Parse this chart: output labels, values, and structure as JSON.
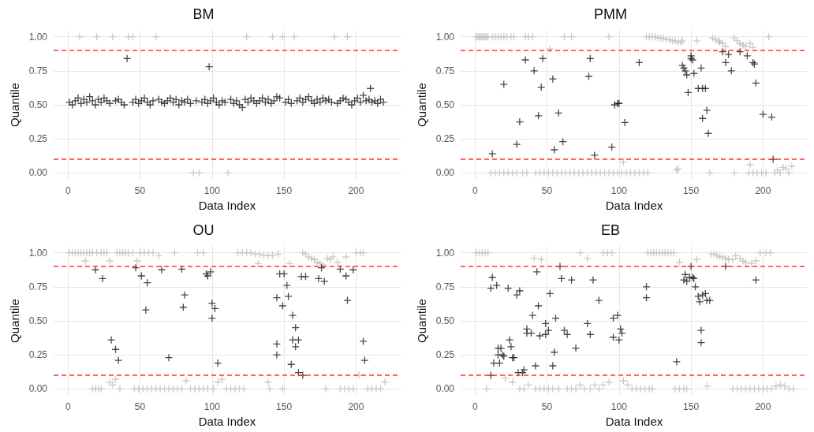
{
  "chart_data": [
    {
      "type": "scatter",
      "title": "BM",
      "xlabel": "Data Index",
      "ylabel": "Quantile",
      "xlim": [
        -10,
        231
      ],
      "ylim": [
        -0.05,
        1.05
      ],
      "xticks": [
        0,
        50,
        100,
        150,
        200
      ],
      "yticks": [
        {
          "value": 0,
          "label": "0.00"
        },
        {
          "value": 0.25,
          "label": "0.25"
        },
        {
          "value": 0.5,
          "label": "0.50"
        },
        {
          "value": 0.75,
          "label": "0.75"
        },
        {
          "value": 1,
          "label": "1.00"
        }
      ],
      "grid": true,
      "marker": "cross",
      "ref_lines": [
        {
          "axis": "y",
          "value": 0.1,
          "color": "#ff3333",
          "line_style": "dashed"
        },
        {
          "axis": "y",
          "value": 0.9,
          "color": "#ff3333",
          "line_style": "dashed"
        }
      ],
      "series": [
        {
          "color": "#bdbdbd",
          "x": [
            8,
            20,
            31,
            42,
            45,
            61,
            124,
            142,
            149,
            157,
            185,
            194,
            87,
            91,
            111
          ],
          "values": [
            1,
            1,
            1,
            1,
            1,
            1,
            1,
            1,
            1,
            1,
            1,
            1,
            0,
            0,
            0
          ]
        },
        {
          "color": "#1a1a1a",
          "x": [
            1,
            3,
            5,
            7,
            9,
            11,
            13,
            15,
            17,
            19,
            21,
            23,
            25,
            27,
            29,
            33,
            35,
            37,
            39,
            41,
            45,
            47,
            49,
            51,
            53,
            55,
            57,
            59,
            63,
            65,
            67,
            69,
            71,
            73,
            75,
            77,
            79,
            81,
            83,
            85,
            89,
            93,
            95,
            97,
            99,
            101,
            103,
            105,
            107,
            109,
            113,
            115,
            117,
            119,
            121,
            123,
            125,
            127,
            129,
            131,
            133,
            135,
            137,
            139,
            141,
            143,
            145,
            147,
            151,
            153,
            155,
            159,
            161,
            163,
            165,
            167,
            169,
            171,
            173,
            175,
            177,
            179,
            181,
            183,
            187,
            189,
            191,
            193,
            195,
            197,
            199,
            201,
            203,
            205,
            207,
            209,
            211,
            213,
            215,
            217,
            219,
            98,
            210
          ],
          "values": [
            0.52,
            0.5,
            0.53,
            0.55,
            0.51,
            0.54,
            0.52,
            0.56,
            0.53,
            0.5,
            0.54,
            0.52,
            0.55,
            0.53,
            0.51,
            0.53,
            0.54,
            0.52,
            0.5,
            0.84,
            0.52,
            0.54,
            0.51,
            0.53,
            0.55,
            0.52,
            0.5,
            0.53,
            0.54,
            0.52,
            0.51,
            0.53,
            0.55,
            0.52,
            0.54,
            0.5,
            0.53,
            0.52,
            0.54,
            0.51,
            0.53,
            0.52,
            0.54,
            0.51,
            0.53,
            0.55,
            0.52,
            0.5,
            0.53,
            0.52,
            0.54,
            0.51,
            0.53,
            0.5,
            0.48,
            0.54,
            0.52,
            0.55,
            0.53,
            0.51,
            0.53,
            0.55,
            0.52,
            0.54,
            0.51,
            0.53,
            0.56,
            0.55,
            0.52,
            0.54,
            0.51,
            0.53,
            0.55,
            0.52,
            0.54,
            0.56,
            0.53,
            0.51,
            0.54,
            0.52,
            0.55,
            0.53,
            0.54,
            0.52,
            0.51,
            0.53,
            0.55,
            0.54,
            0.52,
            0.5,
            0.53,
            0.55,
            0.52,
            0.57,
            0.53,
            0.54,
            0.52,
            0.53,
            0.51,
            0.54,
            0.52,
            0.78,
            0.62
          ]
        }
      ]
    },
    {
      "type": "scatter",
      "title": "PMM",
      "xlabel": "Data Index",
      "ylabel": "Quantile",
      "xlim": [
        -10,
        231
      ],
      "ylim": [
        -0.05,
        1.05
      ],
      "xticks": [
        0,
        50,
        100,
        150,
        200
      ],
      "yticks": [
        {
          "value": 0,
          "label": "0.00"
        },
        {
          "value": 0.25,
          "label": "0.25"
        },
        {
          "value": 0.5,
          "label": "0.50"
        },
        {
          "value": 0.75,
          "label": "0.75"
        },
        {
          "value": 1,
          "label": "1.00"
        }
      ],
      "grid": true,
      "marker": "cross",
      "ref_lines": [
        {
          "axis": "y",
          "value": 0.1,
          "color": "#ff3333",
          "line_style": "dashed"
        },
        {
          "axis": "y",
          "value": 0.9,
          "color": "#ff3333",
          "line_style": "dashed"
        }
      ],
      "series": [
        {
          "color": "#bdbdbd",
          "x": [
            1,
            2,
            3,
            4,
            5,
            6,
            7,
            8,
            9,
            12,
            14,
            16,
            18,
            20,
            22,
            25,
            27,
            35,
            37,
            40,
            62,
            67,
            93,
            119,
            121,
            123,
            125,
            127,
            129,
            131,
            133,
            135,
            137,
            139,
            141,
            143,
            144,
            154,
            165,
            167,
            169,
            170,
            172,
            174,
            180,
            182,
            184,
            186,
            188,
            191,
            193,
            204,
            52,
            11,
            14,
            17,
            20,
            23,
            26,
            29,
            33,
            36,
            42,
            45,
            48,
            51,
            54,
            57,
            60,
            63,
            66,
            69,
            72,
            75,
            78,
            81,
            84,
            87,
            90,
            93,
            96,
            99,
            102,
            105,
            108,
            111,
            114,
            117,
            120,
            140,
            141,
            163,
            180,
            190,
            193,
            196,
            199,
            202,
            208,
            210,
            212,
            214,
            216,
            218,
            220,
            103,
            191
          ],
          "values": [
            1,
            1,
            1,
            1,
            1,
            1,
            1,
            1,
            1,
            1,
            1,
            1,
            1,
            1,
            1,
            1,
            1,
            1,
            1,
            1,
            1,
            1,
            1,
            1,
            1,
            1,
            1,
            0.99,
            0.99,
            0.99,
            0.98,
            0.98,
            0.97,
            0.97,
            0.96,
            0.96,
            0.97,
            0.97,
            0.99,
            0.98,
            0.97,
            0.96,
            0.95,
            0.93,
            0.99,
            0.97,
            0.95,
            0.94,
            0.93,
            0.95,
            0.92,
            1,
            0.91,
            0,
            0,
            0,
            0,
            0,
            0,
            0,
            0,
            0,
            0,
            0,
            0,
            0,
            0,
            0,
            0,
            0,
            0,
            0,
            0,
            0,
            0,
            0,
            0,
            0,
            0,
            0,
            0,
            0,
            0,
            0,
            0,
            0,
            0,
            0,
            0,
            0.02,
            0.03,
            0,
            0,
            0,
            0,
            0,
            0,
            0,
            0,
            0.02,
            0,
            0.04,
            0.03,
            0,
            0.05,
            0.08,
            0.06
          ]
        },
        {
          "color": "#1a1a1a",
          "x": [
            12,
            20,
            31,
            29,
            35,
            41,
            44,
            46,
            47,
            54,
            55,
            58,
            61,
            79,
            80,
            83,
            95,
            97,
            99,
            100,
            104,
            114,
            144,
            145,
            146,
            147,
            148,
            150,
            150,
            151,
            152,
            157,
            155,
            158,
            160,
            158,
            161,
            162,
            172,
            176,
            174,
            178,
            184,
            189,
            193,
            194,
            195,
            200,
            206,
            207
          ],
          "values": [
            0.14,
            0.65,
            0.375,
            0.21,
            0.83,
            0.75,
            0.42,
            0.63,
            0.84,
            0.69,
            0.17,
            0.44,
            0.23,
            0.71,
            0.84,
            0.13,
            0.19,
            0.5,
            0.51,
            0.51,
            0.37,
            0.81,
            0.79,
            0.77,
            0.75,
            0.72,
            0.59,
            0.86,
            0.84,
            0.83,
            0.73,
            0.77,
            0.62,
            0.62,
            0.62,
            0.4,
            0.46,
            0.29,
            0.89,
            0.87,
            0.81,
            0.75,
            0.89,
            0.86,
            0.81,
            0.8,
            0.66,
            0.43,
            0.41,
            0.1
          ]
        }
      ]
    },
    {
      "type": "scatter",
      "title": "OU",
      "xlabel": "Data Index",
      "ylabel": "Quantile",
      "xlim": [
        -10,
        231
      ],
      "ylim": [
        -0.05,
        1.05
      ],
      "xticks": [
        0,
        50,
        100,
        150,
        200
      ],
      "yticks": [
        {
          "value": 0,
          "label": "0.00"
        },
        {
          "value": 0.25,
          "label": "0.25"
        },
        {
          "value": 0.5,
          "label": "0.50"
        },
        {
          "value": 0.75,
          "label": "0.75"
        },
        {
          "value": 1,
          "label": "1.00"
        }
      ],
      "grid": true,
      "marker": "cross",
      "ref_lines": [
        {
          "axis": "y",
          "value": 0.1,
          "color": "#ff3333",
          "line_style": "dashed"
        },
        {
          "axis": "y",
          "value": 0.9,
          "color": "#ff3333",
          "line_style": "dashed"
        }
      ],
      "series": [
        {
          "color": "#bdbdbd",
          "x": [
            1,
            3,
            5,
            7,
            9,
            11,
            13,
            15,
            17,
            20,
            23,
            25,
            27,
            34,
            36,
            38,
            40,
            42,
            45,
            50,
            53,
            56,
            59,
            63,
            74,
            90,
            94,
            118,
            121,
            124,
            127,
            130,
            133,
            136,
            139,
            142,
            146,
            163,
            165,
            167,
            169,
            171,
            173,
            175,
            177,
            180,
            182,
            184,
            187,
            193,
            200,
            203,
            205,
            12,
            29,
            48,
            132,
            154,
            17,
            19,
            21,
            23,
            29,
            31,
            33,
            36,
            46,
            49,
            52,
            55,
            58,
            61,
            64,
            67,
            70,
            73,
            76,
            79,
            82,
            85,
            88,
            91,
            94,
            97,
            101,
            104,
            107,
            110,
            113,
            116,
            119,
            122,
            139,
            140,
            149,
            179,
            189,
            192,
            195,
            198,
            202,
            208,
            211,
            214,
            217,
            220
          ],
          "values": [
            1,
            1,
            1,
            1,
            1,
            1,
            1,
            1,
            1,
            1,
            1,
            1,
            1,
            1,
            1,
            1,
            1,
            1,
            1,
            1,
            1,
            1,
            1,
            0.98,
            1,
            1,
            1,
            1,
            1,
            1,
            1,
            0.99,
            0.99,
            0.98,
            0.98,
            0.98,
            0.99,
            1,
            0.99,
            0.97,
            0.96,
            0.95,
            0.93,
            0.92,
            0.91,
            0.96,
            0.95,
            0.97,
            0.93,
            0.97,
            1,
            1,
            1,
            0.94,
            0.94,
            0.94,
            0.92,
            0.92,
            0,
            0,
            0,
            0,
            0.05,
            0.03,
            0.07,
            0,
            0,
            0,
            0,
            0,
            0,
            0,
            0,
            0,
            0,
            0,
            0,
            0,
            0.06,
            0,
            0,
            0,
            0,
            0,
            0,
            0.05,
            0.07,
            0,
            0,
            0,
            0,
            0,
            0.05,
            0,
            0,
            0,
            0,
            0,
            0,
            0,
            0.1,
            0,
            0,
            0,
            0,
            0.05
          ]
        },
        {
          "color": "#1a1a1a",
          "x": [
            19,
            24,
            30,
            33,
            35,
            47,
            51,
            55,
            54,
            65,
            70,
            79,
            81,
            80,
            96,
            97,
            99,
            100,
            100,
            102,
            104,
            145,
            145,
            145,
            147,
            150,
            149,
            152,
            153,
            156,
            158,
            156,
            158,
            160,
            155,
            160,
            163,
            162,
            165,
            174,
            176,
            178,
            189,
            193,
            198,
            194,
            205,
            206
          ],
          "values": [
            0.875,
            0.81,
            0.36,
            0.29,
            0.21,
            0.89,
            0.83,
            0.78,
            0.58,
            0.875,
            0.23,
            0.88,
            0.69,
            0.6,
            0.845,
            0.83,
            0.86,
            0.52,
            0.63,
            0.59,
            0.19,
            0.33,
            0.25,
            0.67,
            0.845,
            0.845,
            0.61,
            0.76,
            0.68,
            0.54,
            0.45,
            0.36,
            0.31,
            0.36,
            0.18,
            0.12,
            0.1,
            0.825,
            0.825,
            0.81,
            0.89,
            0.79,
            0.88,
            0.83,
            0.875,
            0.65,
            0.35,
            0.21
          ]
        }
      ]
    },
    {
      "type": "scatter",
      "title": "EB",
      "xlabel": "Data Index",
      "ylabel": "Quantile",
      "xlim": [
        -10,
        231
      ],
      "ylim": [
        -0.05,
        1.05
      ],
      "xticks": [
        0,
        50,
        100,
        150,
        200
      ],
      "yticks": [
        {
          "value": 0,
          "label": "0.00"
        },
        {
          "value": 0.25,
          "label": "0.25"
        },
        {
          "value": 0.5,
          "label": "0.50"
        },
        {
          "value": 0.75,
          "label": "0.75"
        },
        {
          "value": 1,
          "label": "1.00"
        }
      ],
      "grid": true,
      "marker": "cross",
      "ref_lines": [
        {
          "axis": "y",
          "value": 0.1,
          "color": "#ff3333",
          "line_style": "dashed"
        },
        {
          "axis": "y",
          "value": 0.9,
          "color": "#ff3333",
          "line_style": "dashed"
        }
      ],
      "series": [
        {
          "color": "#bdbdbd",
          "x": [
            1,
            3,
            5,
            7,
            9,
            41,
            46,
            73,
            78,
            89,
            92,
            95,
            120,
            122,
            124,
            126,
            128,
            130,
            132,
            134,
            136,
            138,
            142,
            154,
            164,
            166,
            168,
            170,
            172,
            174,
            176,
            179,
            181,
            184,
            186,
            188,
            192,
            195,
            198,
            202,
            205,
            8,
            21,
            26,
            31,
            34,
            37,
            42,
            45,
            48,
            51,
            54,
            58,
            64,
            67,
            70,
            73,
            76,
            80,
            83,
            86,
            89,
            93,
            103,
            106,
            109,
            112,
            115,
            118,
            121,
            123,
            139,
            142,
            145,
            147,
            161,
            179,
            182,
            185,
            188,
            191,
            194,
            197,
            200,
            203,
            206,
            209,
            212,
            215,
            218,
            221
          ],
          "values": [
            1,
            1,
            1,
            1,
            1,
            0.96,
            0.95,
            1,
            0.96,
            1,
            1,
            1,
            1,
            1,
            1,
            1,
            1,
            1,
            1,
            1,
            1,
            1,
            0.93,
            0.95,
            0.99,
            0.99,
            0.98,
            0.97,
            0.97,
            0.96,
            0.95,
            0.95,
            0.98,
            0.96,
            0.94,
            0.93,
            0.92,
            0.94,
            1,
            1,
            1,
            0,
            0.08,
            0.05,
            0,
            0,
            0.03,
            0,
            0,
            0,
            0,
            0,
            0,
            0,
            0,
            0,
            0.03,
            0,
            0,
            0.03,
            0,
            0.03,
            0.05,
            0.06,
            0.03,
            0,
            0,
            0,
            0,
            0,
            0,
            0,
            0,
            0,
            0,
            0.02,
            0,
            0,
            0,
            0,
            0,
            0,
            0,
            0,
            0,
            0,
            0.02,
            0.03,
            0.02,
            0,
            0
          ]
        },
        {
          "color": "#1a1a1a",
          "x": [
            11,
            12,
            11,
            15,
            13,
            17,
            16,
            16,
            18,
            19,
            20,
            23,
            24,
            25,
            26,
            27,
            29,
            31,
            30,
            33,
            34,
            36,
            36,
            39,
            40,
            42,
            43,
            44,
            45,
            49,
            49,
            51,
            52,
            54,
            55,
            56,
            59,
            60,
            62,
            64,
            67,
            70,
            78,
            80,
            82,
            86,
            96,
            96,
            99,
            100,
            101,
            102,
            119,
            119,
            140,
            145,
            146,
            147,
            149,
            150,
            151,
            152,
            153,
            155,
            156,
            158,
            160,
            161,
            163,
            157,
            157,
            174,
            195
          ],
          "values": [
            0.1,
            0.82,
            0.74,
            0.76,
            0.19,
            0.19,
            0.3,
            0.25,
            0.3,
            0.25,
            0.24,
            0.74,
            0.36,
            0.31,
            0.23,
            0.23,
            0.69,
            0.72,
            0.12,
            0.12,
            0.14,
            0.44,
            0.41,
            0.41,
            0.54,
            0.17,
            0.86,
            0.61,
            0.39,
            0.4,
            0.48,
            0.43,
            0.7,
            0.17,
            0.27,
            0.52,
            0.9,
            0.81,
            0.43,
            0.4,
            0.8,
            0.3,
            0.48,
            0.4,
            0.8,
            0.65,
            0.52,
            0.38,
            0.54,
            0.36,
            0.44,
            0.41,
            0.75,
            0.67,
            0.2,
            0.8,
            0.84,
            0.79,
            0.82,
            0.9,
            0.82,
            0.81,
            0.75,
            0.68,
            0.64,
            0.69,
            0.7,
            0.65,
            0.65,
            0.43,
            0.34,
            0.9,
            0.8
          ]
        }
      ]
    }
  ]
}
